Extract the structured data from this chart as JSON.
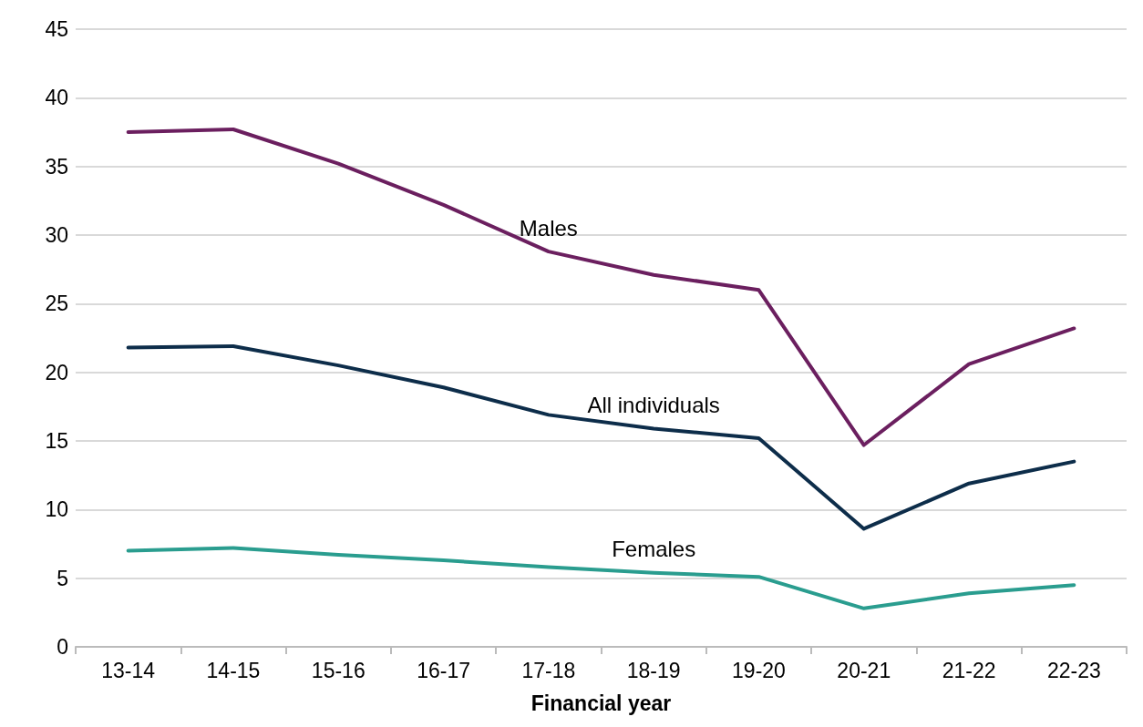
{
  "chart_data": {
    "type": "line",
    "xlabel": "Financial year",
    "categories": [
      "13-14",
      "14-15",
      "15-16",
      "16-17",
      "17-18",
      "18-19",
      "19-20",
      "20-21",
      "21-22",
      "22-23"
    ],
    "series": [
      {
        "name": "Males",
        "color": "#6b1f5f",
        "values": [
          37.5,
          37.7,
          35.2,
          32.2,
          28.8,
          27.1,
          26.0,
          14.7,
          20.6,
          23.2
        ]
      },
      {
        "name": "All individuals",
        "color": "#0d2d4a",
        "values": [
          21.8,
          21.9,
          20.5,
          18.9,
          16.9,
          15.9,
          15.2,
          8.6,
          11.9,
          13.5
        ]
      },
      {
        "name": "Females",
        "color": "#2a9d8f",
        "values": [
          7.0,
          7.2,
          6.7,
          6.3,
          5.8,
          5.4,
          5.1,
          2.8,
          3.9,
          4.5
        ]
      }
    ],
    "ylim": [
      0,
      45
    ],
    "yticks": [
      0,
      5,
      10,
      15,
      20,
      25,
      30,
      35,
      40,
      45
    ],
    "grid": "y",
    "legend": false,
    "marker": "none",
    "line_style": "solid"
  }
}
